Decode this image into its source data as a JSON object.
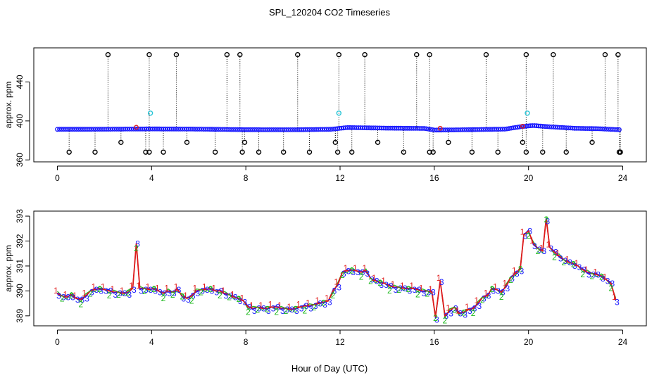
{
  "title": "SPL_120204  CO2 Timeseries",
  "xlabel": "Hour of Day (UTC)",
  "colors": {
    "axis": "#000000",
    "spike_line": "#000000",
    "outlier_marker": "#000000",
    "cyan_marker": "#29c5d6",
    "series_primary": "#1a1aff",
    "series_secondary": "#e01a1a",
    "series_tertiary": "#1bb81b",
    "label1": "#e01a1a",
    "label2": "#1bb81b",
    "label3": "#1a1aff"
  },
  "chart_data": [
    {
      "type": "scatter",
      "id": "top",
      "ylabel": "approx. ppm",
      "xlim": [
        -1,
        25
      ],
      "ylim": [
        358,
        475
      ],
      "x_ticks": [
        0,
        4,
        8,
        12,
        16,
        20,
        24
      ],
      "y_ticks": [
        360,
        400,
        440
      ],
      "baseline": [
        [
          0,
          391.4
        ],
        [
          2,
          391.5
        ],
        [
          4,
          391.8
        ],
        [
          6,
          391.6
        ],
        [
          8,
          391.0
        ],
        [
          10,
          390.9
        ],
        [
          11.6,
          391.4
        ],
        [
          12.3,
          393.2
        ],
        [
          14,
          392.6
        ],
        [
          15.6,
          392.3
        ],
        [
          16,
          390.6
        ],
        [
          17.5,
          391.0
        ],
        [
          19,
          391.6
        ],
        [
          19.7,
          394.2
        ],
        [
          20.2,
          395.3
        ],
        [
          21,
          393.8
        ],
        [
          22,
          392.4
        ],
        [
          23,
          392.0
        ],
        [
          23.8,
          391.0
        ]
      ],
      "spikes_up": [
        2.15,
        3.9,
        5.05,
        7.2,
        7.75,
        10.2,
        11.95,
        13.05,
        15.25,
        15.8,
        18.2,
        19.9,
        21.05,
        23.25,
        23.8
      ],
      "spikes_up_value": 468,
      "spikes_down": [
        0.5,
        1.6,
        2.7,
        3.75,
        3.9,
        4.5,
        5.5,
        6.7,
        7.85,
        7.95,
        8.55,
        9.6,
        10.7,
        11.8,
        11.9,
        12.5,
        13.6,
        14.7,
        15.8,
        15.95,
        16.6,
        17.6,
        18.7,
        19.75,
        19.9,
        20.6,
        21.6,
        22.7,
        23.85,
        23.9
      ],
      "spikes_down_value": 368,
      "spikes_down_high_value": 378,
      "cyan_points": [
        [
          3.95,
          408
        ],
        [
          11.95,
          408
        ],
        [
          19.95,
          408
        ]
      ],
      "red_points": [
        [
          3.35,
          393.5
        ],
        [
          16.25,
          392.5
        ],
        [
          19.75,
          394.5
        ]
      ]
    },
    {
      "type": "line",
      "id": "bottom",
      "ylabel": "approx. ppm",
      "xlim": [
        -1,
        25
      ],
      "ylim": [
        388.6,
        393.2
      ],
      "x_ticks": [
        0,
        4,
        8,
        12,
        16,
        20,
        24
      ],
      "y_ticks": [
        389,
        390,
        391,
        392,
        393
      ],
      "series": [
        {
          "name": "1",
          "label": "1"
        },
        {
          "name": "2",
          "label": "2"
        },
        {
          "name": "3",
          "label": "3"
        }
      ],
      "x": [
        0,
        0.2,
        0.4,
        0.6,
        0.8,
        1.0,
        1.2,
        1.4,
        1.6,
        1.8,
        2.0,
        2.2,
        2.4,
        2.6,
        2.8,
        3.0,
        3.2,
        3.35,
        3.5,
        3.7,
        3.9,
        4.1,
        4.3,
        4.5,
        4.7,
        4.9,
        5.1,
        5.3,
        5.5,
        5.7,
        5.9,
        6.1,
        6.3,
        6.5,
        6.7,
        6.9,
        7.1,
        7.3,
        7.5,
        7.7,
        7.9,
        8.1,
        8.3,
        8.5,
        8.7,
        8.9,
        9.1,
        9.3,
        9.5,
        9.7,
        9.9,
        10.1,
        10.3,
        10.5,
        10.7,
        10.9,
        11.1,
        11.3,
        11.5,
        11.7,
        11.9,
        12.1,
        12.3,
        12.5,
        12.7,
        12.9,
        13.1,
        13.3,
        13.5,
        13.7,
        13.9,
        14.1,
        14.3,
        14.5,
        14.7,
        14.9,
        15.1,
        15.3,
        15.5,
        15.7,
        15.9,
        16.05,
        16.25,
        16.45,
        16.65,
        16.85,
        17.05,
        17.25,
        17.45,
        17.65,
        17.85,
        18.05,
        18.25,
        18.45,
        18.65,
        18.85,
        19.05,
        19.25,
        19.45,
        19.65,
        19.8,
        20.0,
        20.2,
        20.4,
        20.6,
        20.75,
        20.9,
        21.1,
        21.3,
        21.5,
        21.7,
        21.9,
        22.1,
        22.3,
        22.5,
        22.7,
        22.9,
        23.1,
        23.3,
        23.5,
        23.7
      ],
      "values": [
        389.9,
        389.8,
        389.75,
        389.85,
        389.7,
        389.65,
        389.8,
        390.0,
        390.05,
        390.1,
        390.05,
        390.0,
        389.95,
        389.95,
        389.9,
        389.95,
        390.1,
        391.9,
        390.1,
        390.1,
        390.05,
        390.1,
        390.0,
        389.9,
        390.0,
        389.95,
        390.05,
        389.8,
        389.7,
        389.8,
        390.0,
        390.05,
        390.05,
        390.1,
        390.0,
        390.0,
        389.9,
        389.85,
        389.75,
        389.7,
        389.6,
        389.35,
        389.3,
        389.35,
        389.3,
        389.3,
        389.35,
        389.35,
        389.3,
        389.3,
        389.25,
        389.3,
        389.35,
        389.4,
        389.4,
        389.45,
        389.5,
        389.55,
        389.6,
        390.0,
        390.25,
        390.75,
        390.8,
        390.85,
        390.8,
        390.75,
        390.8,
        390.5,
        390.4,
        390.35,
        390.3,
        390.2,
        390.15,
        390.15,
        390.1,
        390.1,
        390.1,
        390.05,
        390.0,
        390.0,
        389.95,
        388.95,
        390.4,
        389.0,
        389.2,
        389.35,
        389.1,
        389.15,
        389.25,
        389.3,
        389.5,
        389.75,
        389.8,
        390.1,
        390.05,
        389.95,
        390.2,
        390.55,
        390.7,
        390.9,
        392.25,
        392.4,
        391.9,
        391.7,
        391.6,
        392.9,
        391.75,
        391.55,
        391.4,
        391.25,
        391.15,
        391.1,
        391.0,
        390.85,
        390.75,
        390.7,
        390.65,
        390.6,
        390.45,
        390.3,
        389.65
      ]
    }
  ]
}
